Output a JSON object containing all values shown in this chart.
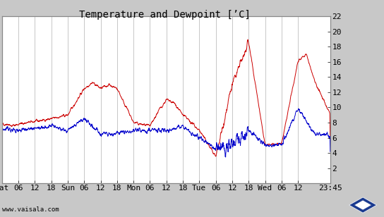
{
  "title": "Temperature and Dewpoint [’C]",
  "ylim": [
    0,
    22
  ],
  "yticks": [
    0,
    2,
    4,
    6,
    8,
    10,
    12,
    14,
    16,
    18,
    20,
    22
  ],
  "xtick_labels": [
    "Sat",
    "06",
    "12",
    "18",
    "Sun",
    "06",
    "12",
    "18",
    "Mon",
    "06",
    "12",
    "18",
    "Tue",
    "06",
    "12",
    "18",
    "Wed",
    "06",
    "12",
    "23:45"
  ],
  "xtick_pos": [
    0,
    6,
    12,
    18,
    24,
    30,
    36,
    42,
    48,
    54,
    60,
    66,
    72,
    78,
    84,
    90,
    96,
    102,
    108,
    119.75
  ],
  "watermark": "www.vaisala.com",
  "bg_color": "#c8c8c8",
  "plot_bg_color": "#ffffff",
  "grid_color": "#b0b0b0",
  "temp_color": "#cc0000",
  "dew_color": "#0000cc",
  "title_fontsize": 10,
  "tick_fontsize": 8,
  "xlim_end": 119.75
}
